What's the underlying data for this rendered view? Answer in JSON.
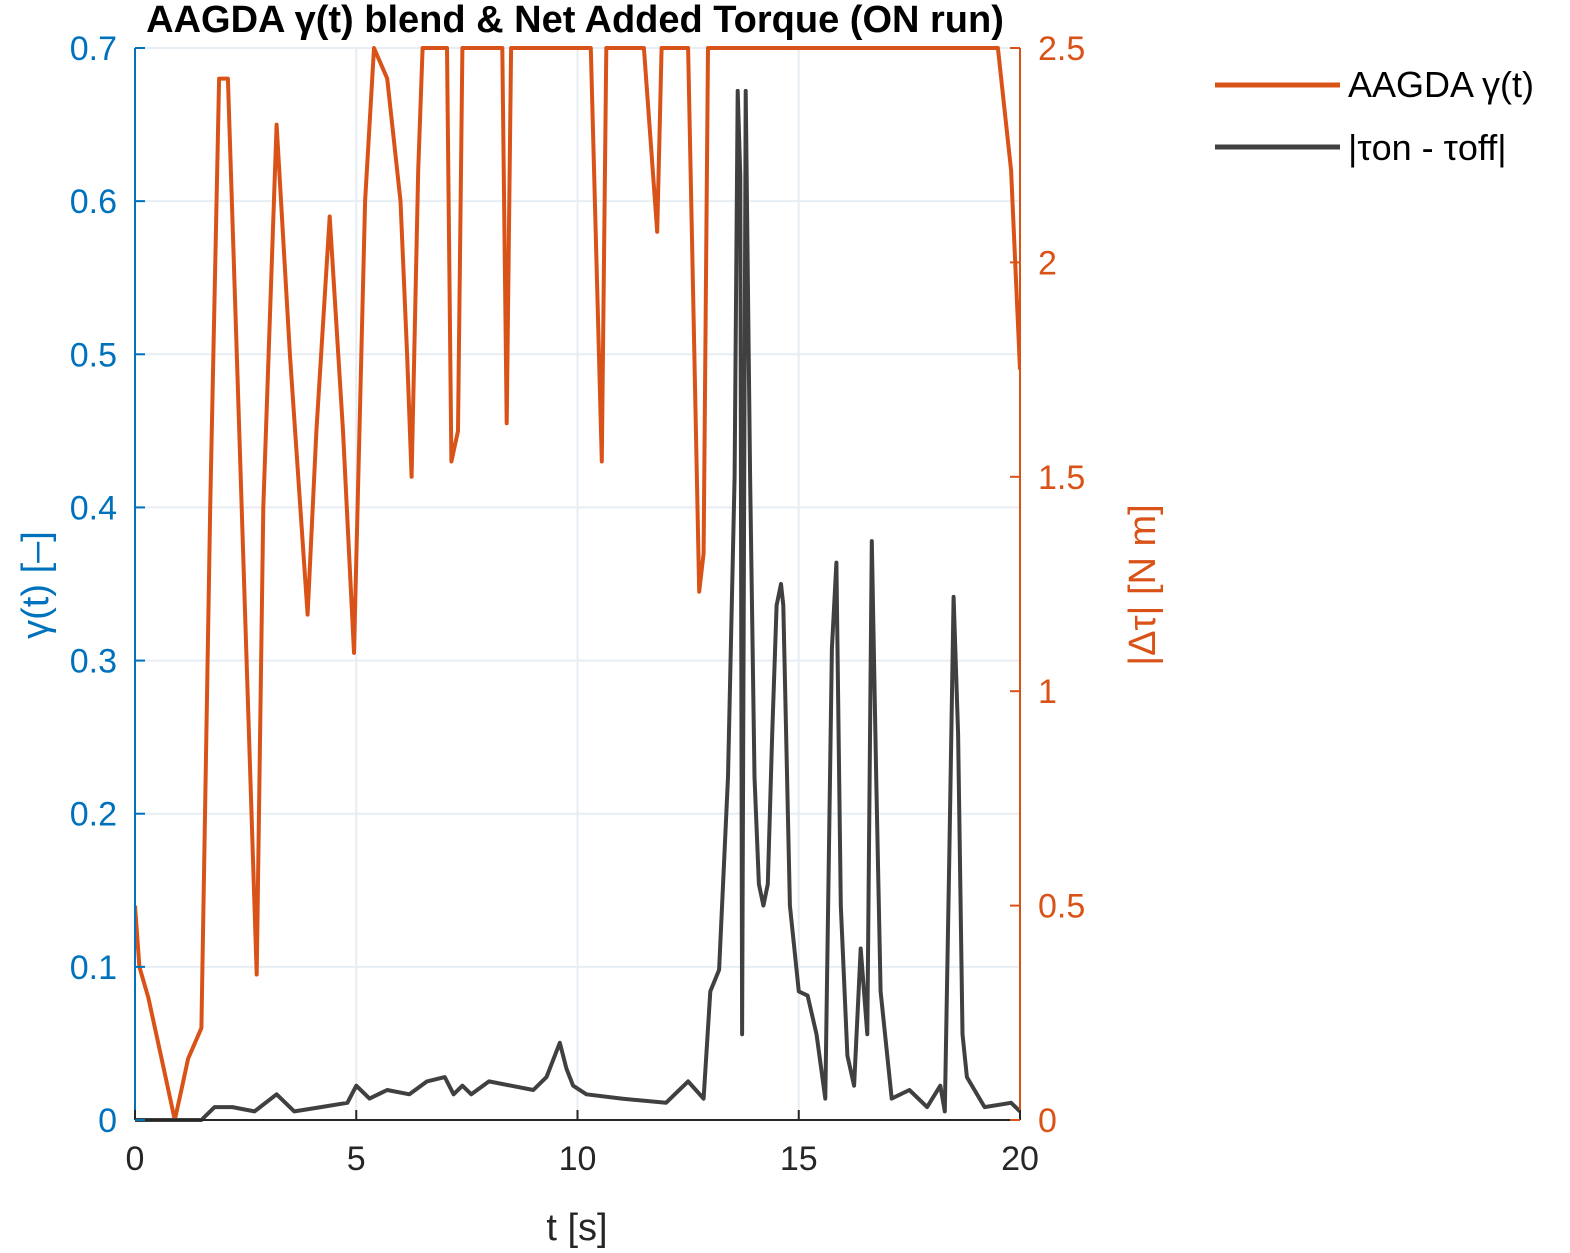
{
  "chart_data": {
    "type": "line",
    "title": "AAGDA γ(t) blend & Net Added Torque (ON run)",
    "xlabel": "t [s]",
    "ylabel_left": "γ(t) [–]",
    "ylabel_right": "|Δτ| [N m]",
    "xlim": [
      0,
      20
    ],
    "ylim_left": [
      0,
      0.7
    ],
    "ylim_right": [
      0,
      2.5
    ],
    "x_ticks": [
      "0",
      "5",
      "10",
      "15",
      "20"
    ],
    "y_ticks_left": [
      "0",
      "0.1",
      "0.2",
      "0.3",
      "0.4",
      "0.5",
      "0.6",
      "0.7"
    ],
    "y_ticks_right": [
      "0",
      "0.5",
      "1",
      "1.5",
      "2",
      "2.5"
    ],
    "grid": true,
    "legend_position": "outside-right",
    "colors": {
      "gamma": "#d95319",
      "delta": "#404040",
      "left_axis": "#0072bd",
      "right_axis": "#d95319"
    },
    "series": [
      {
        "name": "AAGDA γ(t)",
        "axis": "left",
        "x": [
          0,
          0.1,
          0.3,
          0.6,
          0.9,
          1.05,
          1.2,
          1.5,
          1.7,
          1.9,
          2.1,
          2.3,
          2.5,
          2.75,
          2.9,
          3.2,
          3.5,
          3.9,
          4.1,
          4.4,
          4.7,
          4.95,
          5.2,
          5.4,
          5.7,
          6.0,
          6.15,
          6.25,
          6.4,
          6.5,
          6.8,
          7.05,
          7.15,
          7.3,
          7.4,
          7.5,
          7.9,
          8.3,
          8.4,
          8.5,
          8.6,
          9.0,
          10.3,
          10.55,
          10.65,
          10.8,
          11.5,
          11.8,
          11.9,
          12.0,
          12.5,
          12.75,
          12.85,
          12.95,
          13.5,
          19.5,
          19.8,
          20.0
        ],
        "y": [
          0.14,
          0.1,
          0.08,
          0.04,
          0.0,
          0.02,
          0.04,
          0.06,
          0.4,
          0.68,
          0.68,
          0.5,
          0.32,
          0.095,
          0.4,
          0.65,
          0.5,
          0.33,
          0.45,
          0.59,
          0.45,
          0.305,
          0.6,
          0.7,
          0.68,
          0.6,
          0.5,
          0.42,
          0.62,
          0.7,
          0.7,
          0.7,
          0.43,
          0.45,
          0.7,
          0.7,
          0.7,
          0.7,
          0.455,
          0.7,
          0.7,
          0.7,
          0.7,
          0.43,
          0.7,
          0.7,
          0.7,
          0.58,
          0.7,
          0.7,
          0.7,
          0.345,
          0.37,
          0.7,
          0.7,
          0.7,
          0.62,
          0.49
        ]
      },
      {
        "name": "|τon - τoff|",
        "axis": "right",
        "x": [
          0,
          1.5,
          1.8,
          2.2,
          2.7,
          3.2,
          3.6,
          4.2,
          4.8,
          5.0,
          5.3,
          5.7,
          6.2,
          6.6,
          7.0,
          7.2,
          7.4,
          7.6,
          8.0,
          8.5,
          9.0,
          9.3,
          9.6,
          9.75,
          9.9,
          10.2,
          11.0,
          12.0,
          12.5,
          12.85,
          13.0,
          13.2,
          13.4,
          13.55,
          13.62,
          13.68,
          13.72,
          13.8,
          13.9,
          14.0,
          14.1,
          14.2,
          14.3,
          14.4,
          14.5,
          14.6,
          14.65,
          14.8,
          15.0,
          15.2,
          15.4,
          15.6,
          15.75,
          15.85,
          15.95,
          16.1,
          16.25,
          16.4,
          16.55,
          16.65,
          16.75,
          16.85,
          17.1,
          17.5,
          17.9,
          18.2,
          18.3,
          18.4,
          18.5,
          18.6,
          18.7,
          18.8,
          19.2,
          19.8,
          20.0
        ],
        "y": [
          0,
          0,
          0.03,
          0.03,
          0.02,
          0.06,
          0.02,
          0.03,
          0.04,
          0.08,
          0.05,
          0.07,
          0.06,
          0.09,
          0.1,
          0.06,
          0.08,
          0.06,
          0.09,
          0.08,
          0.07,
          0.1,
          0.18,
          0.12,
          0.08,
          0.06,
          0.05,
          0.04,
          0.09,
          0.05,
          0.3,
          0.35,
          0.8,
          1.5,
          2.4,
          2.2,
          0.2,
          2.4,
          1.5,
          0.8,
          0.55,
          0.5,
          0.55,
          0.9,
          1.2,
          1.25,
          1.2,
          0.5,
          0.3,
          0.29,
          0.2,
          0.05,
          1.1,
          1.3,
          0.5,
          0.15,
          0.08,
          0.4,
          0.2,
          1.35,
          0.8,
          0.3,
          0.05,
          0.07,
          0.03,
          0.08,
          0.02,
          0.6,
          1.22,
          0.9,
          0.2,
          0.1,
          0.03,
          0.04,
          0.02
        ]
      }
    ]
  }
}
